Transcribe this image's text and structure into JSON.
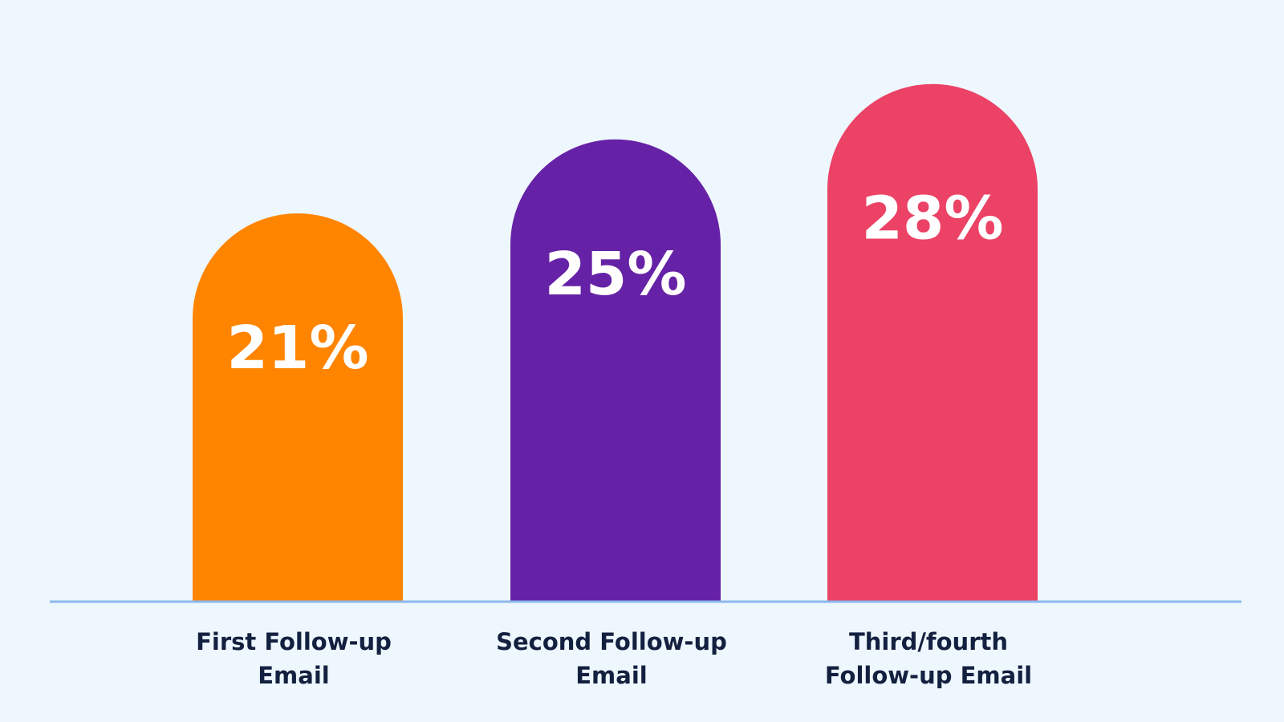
{
  "chart_data": {
    "type": "bar",
    "categories": [
      [
        "First Follow-up",
        "Email"
      ],
      [
        "Second Follow-up",
        "Email"
      ],
      [
        "Third/fourth",
        "Follow-up Email"
      ]
    ],
    "values": [
      21,
      25,
      28
    ],
    "value_labels": [
      "21%",
      "25%",
      "28%"
    ],
    "colors": [
      "#ff8400",
      "#6622a6",
      "#eb4266"
    ],
    "axis_color": "#8cb8ec",
    "ylim": [
      0,
      30
    ],
    "title": "",
    "xlabel": "",
    "ylabel": "",
    "grid": false
  }
}
